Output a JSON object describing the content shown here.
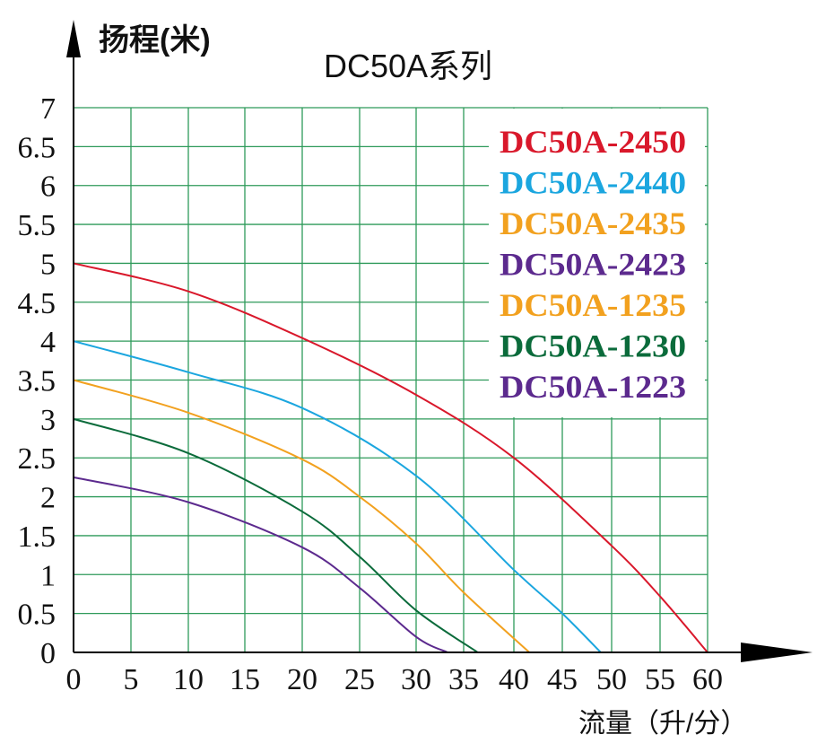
{
  "chart_data": {
    "type": "line",
    "title": "DC50A系列",
    "xlabel": "流量（升/分）",
    "ylabel": "扬程(米)",
    "xlim": [
      0,
      60
    ],
    "ylim": [
      0,
      7
    ],
    "grid": true,
    "legend_placement": "top-right",
    "x_ticks": [
      "0",
      "5",
      "10",
      "15",
      "20",
      "25",
      "30",
      "35",
      "40",
      "45",
      "50",
      "55",
      "60"
    ],
    "y_ticks": [
      "0",
      "0.5",
      "1",
      "1.5",
      "2",
      "2.5",
      "3",
      "3.5",
      "4",
      "4.5",
      "5",
      "5.5",
      "6",
      "6.5",
      "7"
    ],
    "legend": [
      {
        "label": "DC50A-2450",
        "color": "#d9182b"
      },
      {
        "label": "DC50A-2440",
        "color": "#1ba6df"
      },
      {
        "label": "DC50A-2435",
        "color": "#f2a11f"
      },
      {
        "label": "DC50A-2423",
        "color": "#5c2a8e"
      },
      {
        "label": "DC50A-1235",
        "color": "#f2a11f"
      },
      {
        "label": "DC50A-1230",
        "color": "#0b6b3b"
      },
      {
        "label": "DC50A-1223",
        "color": "#5c2a8e"
      }
    ],
    "series": [
      {
        "color": "#d9182b",
        "x": [
          0,
          10,
          20,
          30,
          40,
          50,
          55,
          60
        ],
        "y": [
          5,
          4.64,
          4.04,
          3.31,
          2.5,
          1.37,
          0.72,
          0
        ]
      },
      {
        "color": "#1ba6df",
        "x": [
          0,
          10,
          20,
          30,
          40,
          45,
          48.9
        ],
        "y": [
          4,
          3.6,
          3.14,
          2.27,
          1.06,
          0.5,
          0
        ]
      },
      {
        "color": "#f2a11f",
        "x": [
          0,
          10,
          20,
          25,
          30,
          35,
          41.6
        ],
        "y": [
          3.5,
          3.08,
          2.48,
          2.0,
          1.4,
          0.77,
          0
        ]
      },
      {
        "color": "#0b6b3b",
        "x": [
          0,
          10,
          20,
          25,
          30,
          36.4
        ],
        "y": [
          3,
          2.56,
          1.81,
          1.23,
          0.54,
          0
        ]
      },
      {
        "color": "#5c2a8e",
        "x": [
          0,
          10,
          20,
          25,
          30,
          33.3
        ],
        "y": [
          2.25,
          1.93,
          1.35,
          0.83,
          0.2,
          0
        ]
      }
    ],
    "grid_color": "#2e9a5a"
  }
}
